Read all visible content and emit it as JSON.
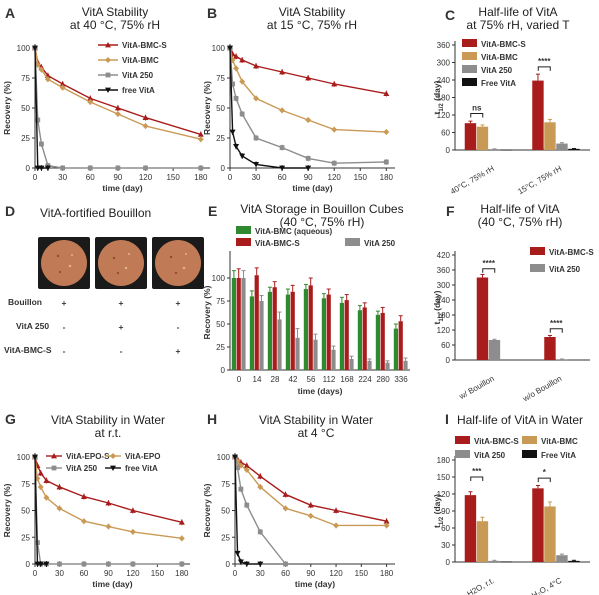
{
  "colors": {
    "red": "#a81c1c",
    "gold": "#c99a55",
    "gray": "#8d8d8d",
    "black": "#111111",
    "green": "#2f8a2f",
    "bouillon": "#c07a55"
  },
  "panel_d": {
    "letter": "D",
    "title": "VitA-fortified Bouillon",
    "rows": [
      {
        "label": "Bouillon",
        "marks": [
          "+",
          "+",
          "+"
        ]
      },
      {
        "label": "VitA 250",
        "marks": [
          "-",
          "+",
          "-"
        ]
      },
      {
        "label": "VitA-BMC-S",
        "marks": [
          "-",
          "-",
          "+"
        ]
      }
    ]
  },
  "chart_data": [
    {
      "id": "A",
      "type": "line",
      "title": [
        "VitA Stability",
        "at 40 °C, 75% rH"
      ],
      "xlabel": "time (day)",
      "ylabel": "Recovery (%)",
      "xlim": [
        0,
        190
      ],
      "ylim": [
        0,
        100
      ],
      "xticks": [
        "0",
        "30",
        "60",
        "90",
        "120",
        "150",
        "180"
      ],
      "yticks": [
        "0",
        "25",
        "50",
        "75",
        "100"
      ],
      "legend": "top-right",
      "series": [
        {
          "name": "VitA-BMC-S",
          "color": "red",
          "marker": "triangle",
          "x": [
            0,
            3,
            7,
            14,
            30,
            60,
            90,
            120,
            180
          ],
          "y": [
            100,
            88,
            84,
            77,
            70,
            58,
            50,
            42,
            28
          ]
        },
        {
          "name": "VitA-BMC",
          "color": "gold",
          "marker": "diamond",
          "x": [
            0,
            3,
            7,
            14,
            30,
            60,
            90,
            120,
            180
          ],
          "y": [
            100,
            86,
            82,
            74,
            67,
            55,
            45,
            35,
            24
          ]
        },
        {
          "name": "VitA 250",
          "color": "gray",
          "marker": "square",
          "x": [
            0,
            3,
            7,
            14,
            30,
            60,
            90,
            120,
            180
          ],
          "y": [
            100,
            40,
            20,
            2,
            0,
            0,
            0,
            0,
            0
          ]
        },
        {
          "name": "free VitA",
          "color": "black",
          "marker": "triangle-down",
          "x": [
            0,
            3,
            7,
            14
          ],
          "y": [
            100,
            0,
            0,
            0
          ]
        }
      ]
    },
    {
      "id": "B",
      "type": "line",
      "title": [
        "VitA Stability",
        "at 15 °C, 75% rH"
      ],
      "xlabel": "time (day)",
      "ylabel": "Recovery (%)",
      "xlim": [
        0,
        190
      ],
      "ylim": [
        0,
        100
      ],
      "xticks": [
        "0",
        "30",
        "60",
        "90",
        "120",
        "150",
        "180"
      ],
      "yticks": [
        "0",
        "25",
        "50",
        "75",
        "100"
      ],
      "series": [
        {
          "name": "VitA-BMC-S",
          "color": "red",
          "marker": "triangle",
          "x": [
            0,
            3,
            7,
            14,
            30,
            60,
            90,
            120,
            180
          ],
          "y": [
            100,
            95,
            93,
            90,
            85,
            80,
            75,
            70,
            62
          ]
        },
        {
          "name": "VitA-BMC",
          "color": "gold",
          "marker": "diamond",
          "x": [
            0,
            3,
            7,
            14,
            30,
            60,
            90,
            120,
            180
          ],
          "y": [
            100,
            90,
            83,
            72,
            58,
            48,
            40,
            32,
            30
          ]
        },
        {
          "name": "VitA 250",
          "color": "gray",
          "marker": "square",
          "x": [
            0,
            3,
            7,
            14,
            30,
            60,
            90,
            120,
            180
          ],
          "y": [
            100,
            70,
            58,
            45,
            25,
            17,
            8,
            4,
            5
          ]
        },
        {
          "name": "free VitA",
          "color": "black",
          "marker": "triangle-down",
          "x": [
            0,
            3,
            7,
            14,
            30,
            60,
            90
          ],
          "y": [
            100,
            30,
            18,
            10,
            3,
            0,
            0
          ]
        }
      ]
    },
    {
      "id": "C",
      "type": "bar",
      "title": [
        "Half-life of VitA",
        "at 75% rH, varied T"
      ],
      "ylabel": "t1/2 (day)",
      "ylim": [
        0,
        360
      ],
      "yticks": [
        "0",
        "60",
        "120",
        "180",
        "240",
        "300",
        "360"
      ],
      "categories": [
        "40°C, 75% rH",
        "15°C, 75% rH"
      ],
      "legend": "top-left",
      "series": [
        {
          "name": "VitA-BMC-S",
          "color": "red",
          "values": [
            92,
            238
          ],
          "err": [
            7,
            22
          ]
        },
        {
          "name": "VitA-BMC",
          "color": "gold",
          "values": [
            80,
            95
          ],
          "err": [
            6,
            10
          ]
        },
        {
          "name": "VitA 250",
          "color": "gray",
          "values": [
            3,
            22
          ],
          "err": [
            1,
            3
          ]
        },
        {
          "name": "Free VitA",
          "color": "black",
          "values": [
            1,
            4
          ],
          "err": [
            0,
            1
          ]
        }
      ],
      "annotations": [
        {
          "text": "ns",
          "cat": 0,
          "between": [
            0,
            1
          ],
          "y": 125
        },
        {
          "text": "****",
          "cat": 1,
          "between": [
            0,
            1
          ],
          "y": 285
        }
      ]
    },
    {
      "id": "E",
      "type": "bar",
      "title": [
        "VitA Storage in Bouillon Cubes",
        "(40 °C, 75% rH)"
      ],
      "xlabel": "time (days)",
      "ylabel": "Recovery (%)",
      "ylim": [
        0,
        125
      ],
      "yticks": [
        "0",
        "25",
        "50",
        "75",
        "100"
      ],
      "categories": [
        "0",
        "14",
        "28",
        "42",
        "56",
        "112",
        "168",
        "224",
        "280",
        "336"
      ],
      "legend": "top",
      "series": [
        {
          "name": "VitA-BMC (aqueous)",
          "color": "green",
          "values": [
            100,
            80,
            85,
            82,
            88,
            78,
            73,
            65,
            60,
            45
          ],
          "err": [
            8,
            6,
            5,
            6,
            5,
            5,
            6,
            5,
            4,
            5
          ]
        },
        {
          "name": "VitA-BMC-S",
          "color": "red",
          "values": [
            100,
            103,
            90,
            85,
            92,
            82,
            76,
            68,
            62,
            53
          ],
          "err": [
            10,
            8,
            6,
            7,
            8,
            6,
            6,
            5,
            6,
            6
          ]
        },
        {
          "name": "VitA 250",
          "color": "gray",
          "values": [
            100,
            75,
            55,
            35,
            33,
            22,
            12,
            10,
            8,
            10
          ],
          "err": [
            8,
            6,
            8,
            10,
            6,
            4,
            3,
            2,
            2,
            3
          ]
        }
      ]
    },
    {
      "id": "F",
      "type": "bar",
      "title": [
        "Half-life of VitA",
        "(40 °C, 75% rH)"
      ],
      "ylabel": "t1/2 (day)",
      "ylim": [
        0,
        420
      ],
      "yticks": [
        "0",
        "60",
        "120",
        "180",
        "240",
        "300",
        "360",
        "420"
      ],
      "categories": [
        "w/ Bouillon",
        "w/o Bouillon"
      ],
      "legend": "top-right",
      "series": [
        {
          "name": "VitA-BMC-S",
          "color": "red",
          "values": [
            330,
            92
          ],
          "err": [
            12,
            6
          ]
        },
        {
          "name": "VitA 250",
          "color": "gray",
          "values": [
            80,
            3
          ],
          "err": [
            3,
            1
          ]
        }
      ],
      "annotations": [
        {
          "text": "****",
          "cat": 0,
          "between": [
            0,
            1
          ],
          "y": 365
        },
        {
          "text": "****",
          "cat": 1,
          "between": [
            0,
            1
          ],
          "y": 125
        }
      ]
    },
    {
      "id": "G",
      "type": "line",
      "title": [
        "VitA Stability in Water",
        "at r.t."
      ],
      "xlabel": "time (day)",
      "ylabel": "Recovery (%)",
      "xlim": [
        0,
        190
      ],
      "ylim": [
        0,
        100
      ],
      "xticks": [
        "0",
        "30",
        "60",
        "90",
        "120",
        "150",
        "180"
      ],
      "yticks": [
        "0",
        "25",
        "50",
        "75",
        "100"
      ],
      "legend": "top-right",
      "series": [
        {
          "name": "VitA-EPO-S",
          "color": "red",
          "marker": "triangle",
          "x": [
            0,
            3,
            7,
            14,
            30,
            60,
            90,
            120,
            180
          ],
          "y": [
            100,
            92,
            85,
            78,
            72,
            63,
            57,
            50,
            39
          ]
        },
        {
          "name": "VitA-EPO",
          "color": "gold",
          "marker": "diamond",
          "x": [
            0,
            3,
            7,
            14,
            30,
            60,
            90,
            120,
            180
          ],
          "y": [
            100,
            80,
            72,
            62,
            52,
            40,
            35,
            30,
            24
          ]
        },
        {
          "name": "VitA 250",
          "color": "gray",
          "marker": "square",
          "x": [
            0,
            3,
            7,
            14,
            30,
            60,
            90,
            120,
            180
          ],
          "y": [
            100,
            20,
            0,
            0,
            0,
            0,
            0,
            0,
            0
          ]
        },
        {
          "name": "free VitA",
          "color": "black",
          "marker": "triangle-down",
          "x": [
            0,
            3,
            7,
            14
          ],
          "y": [
            100,
            0,
            0,
            0
          ]
        }
      ]
    },
    {
      "id": "H",
      "type": "line",
      "title": [
        "VitA Stability in Water",
        "at 4 °C"
      ],
      "xlabel": "time (day)",
      "ylabel": "Recovery (%)",
      "xlim": [
        0,
        190
      ],
      "ylim": [
        0,
        100
      ],
      "xticks": [
        "0",
        "30",
        "60",
        "90",
        "120",
        "150",
        "180"
      ],
      "yticks": [
        "0",
        "25",
        "50",
        "75",
        "100"
      ],
      "series": [
        {
          "name": "VitA-BMC-S",
          "color": "red",
          "marker": "triangle",
          "x": [
            0,
            3,
            7,
            14,
            30,
            60,
            90,
            120,
            180
          ],
          "y": [
            100,
            98,
            95,
            92,
            82,
            65,
            55,
            50,
            40
          ]
        },
        {
          "name": "VitA-BMC",
          "color": "gold",
          "marker": "diamond",
          "x": [
            0,
            3,
            7,
            14,
            30,
            60,
            90,
            120,
            180
          ],
          "y": [
            100,
            96,
            92,
            88,
            72,
            52,
            45,
            36,
            36
          ]
        },
        {
          "name": "VitA 250",
          "color": "gray",
          "marker": "square",
          "x": [
            0,
            3,
            7,
            14,
            30,
            60
          ],
          "y": [
            100,
            90,
            70,
            55,
            30,
            0
          ]
        },
        {
          "name": "free VitA",
          "color": "black",
          "marker": "triangle-down",
          "x": [
            0,
            3,
            7,
            14,
            30
          ],
          "y": [
            100,
            10,
            2,
            0,
            0
          ]
        }
      ]
    },
    {
      "id": "I",
      "type": "bar",
      "title": [
        "Half-life of VitA in Water"
      ],
      "ylabel": "t1/2 (day)",
      "ylim": [
        0,
        180
      ],
      "yticks": [
        "0",
        "30",
        "60",
        "90",
        "120",
        "150",
        "180"
      ],
      "categories": [
        "H2O, r.t.",
        "H₂O, 4°C"
      ],
      "legend": "top",
      "series": [
        {
          "name": "VitA-BMC-S",
          "color": "red",
          "values": [
            118,
            130
          ],
          "err": [
            6,
            5
          ]
        },
        {
          "name": "VitA-BMC",
          "color": "gold",
          "values": [
            72,
            98
          ],
          "err": [
            7,
            8
          ]
        },
        {
          "name": "VitA 250",
          "color": "gray",
          "values": [
            2,
            12
          ],
          "err": [
            1,
            2
          ]
        },
        {
          "name": "Free VitA",
          "color": "black",
          "values": [
            1,
            2
          ],
          "err": [
            0,
            1
          ]
        }
      ],
      "annotations": [
        {
          "text": "***",
          "cat": 0,
          "between": [
            0,
            1
          ],
          "y": 150
        },
        {
          "text": "*",
          "cat": 1,
          "between": [
            0,
            1
          ],
          "y": 148
        }
      ]
    }
  ]
}
